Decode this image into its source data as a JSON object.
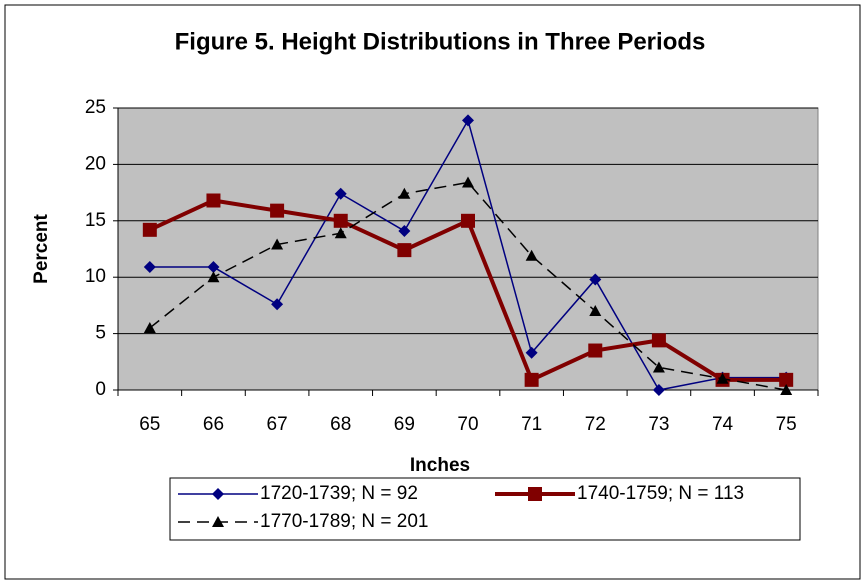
{
  "chart_data": {
    "type": "line",
    "title": "Figure 5. Height Distributions in Three Periods",
    "xlabel": "Inches",
    "ylabel": "Percent",
    "categories": [
      "65",
      "66",
      "67",
      "68",
      "69",
      "70",
      "71",
      "72",
      "73",
      "74",
      "75"
    ],
    "series": [
      {
        "name": "1720-1739; N = 92",
        "color": "#000080",
        "marker": "diamond",
        "dash": false,
        "values": [
          10.9,
          10.9,
          7.6,
          17.4,
          14.1,
          23.9,
          3.3,
          9.8,
          0,
          1.1,
          1.1
        ]
      },
      {
        "name": "1740-1759; N = 113",
        "color": "#800000",
        "marker": "square",
        "dash": false,
        "values": [
          14.2,
          16.8,
          15.9,
          15.0,
          12.4,
          15.0,
          0.9,
          3.5,
          4.4,
          0.9,
          0.9
        ]
      },
      {
        "name": "1770-1789; N = 201",
        "color": "#000000",
        "marker": "triangle",
        "dash": true,
        "values": [
          5.5,
          10.0,
          12.9,
          13.9,
          17.4,
          18.4,
          11.9,
          7.0,
          2.0,
          1.0,
          0.0
        ]
      }
    ],
    "ylim": [
      0,
      25
    ],
    "yticks": [
      0,
      5,
      10,
      15,
      20,
      25
    ],
    "grid": true,
    "legend": "bottom"
  }
}
